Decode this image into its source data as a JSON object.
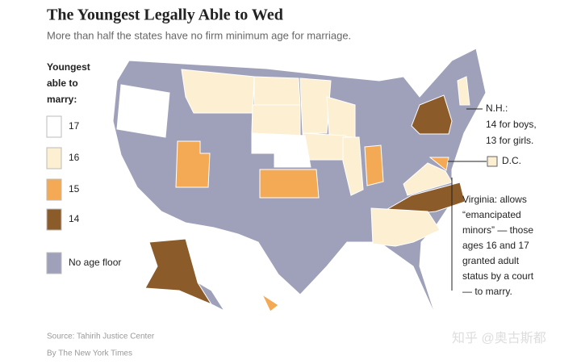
{
  "header": {
    "title": "The Youngest Legally Able to Wed",
    "subtitle": "More than half the states have no firm minimum age for marriage."
  },
  "legend": {
    "title_lines": [
      "Youngest",
      "able to",
      "marry:"
    ],
    "items": [
      {
        "label": "17",
        "color": "#ffffff"
      },
      {
        "label": "16",
        "color": "#fcefd2"
      },
      {
        "label": "15",
        "color": "#f4a955"
      },
      {
        "label": "14",
        "color": "#8b5b2a"
      },
      {
        "label": "No age floor",
        "color": "#9fa1ba"
      }
    ]
  },
  "annotations": {
    "nh": [
      "N.H.:",
      "14 for boys,",
      "13 for girls."
    ],
    "dc": "D.C.",
    "virginia": [
      "Virginia: allows",
      "“emancipated",
      "minors” — those",
      "ages 16 and 17",
      "granted adult",
      "status by a court",
      "— to marry."
    ]
  },
  "footer": {
    "source": "Source: Tahirih Justice Center",
    "byline": "By The New York Times"
  },
  "watermark": "知乎 @奥古斯都"
}
